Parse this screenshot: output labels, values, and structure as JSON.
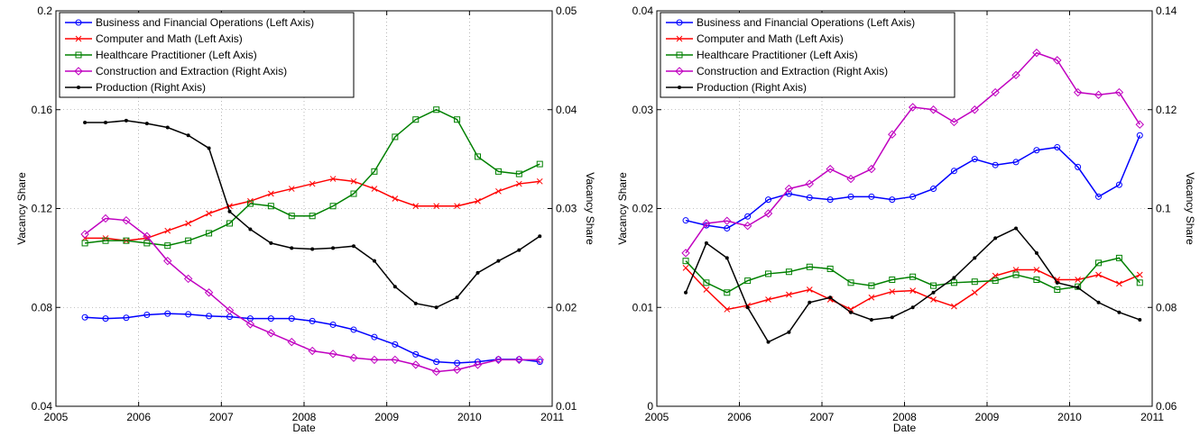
{
  "chart_data": [
    {
      "type": "line",
      "x_label": "Date",
      "y_label": "Vacancy Share",
      "y2_label": "Vacancy Share",
      "x": [
        2005.35,
        2005.6,
        2005.85,
        2006.1,
        2006.35,
        2006.6,
        2006.85,
        2007.1,
        2007.35,
        2007.6,
        2007.85,
        2008.1,
        2008.35,
        2008.6,
        2008.85,
        2009.1,
        2009.35,
        2009.6,
        2009.85,
        2010.1,
        2010.35,
        2010.6,
        2010.85
      ],
      "xlim": [
        2005,
        2011
      ],
      "xticks": [
        2005,
        2006,
        2007,
        2008,
        2009,
        2010,
        2011
      ],
      "ylim": [
        0.04,
        0.2
      ],
      "yticks": [
        0.04,
        0.08,
        0.12,
        0.16,
        0.2
      ],
      "y2lim": [
        0.01,
        0.05
      ],
      "y2ticks": [
        0.01,
        0.02,
        0.03,
        0.04,
        0.05
      ],
      "grid": true,
      "legend": "top-left",
      "series": [
        {
          "name": "Business and Financial Operations (Left Axis)",
          "color": "#0000ff",
          "marker": "circle",
          "values": [
            0.076,
            0.0755,
            0.0758,
            0.077,
            0.0775,
            0.0772,
            0.0765,
            0.0762,
            0.0755,
            0.0755,
            0.0755,
            0.0745,
            0.073,
            0.071,
            0.068,
            0.065,
            0.061,
            0.058,
            0.0575,
            0.058,
            0.059,
            0.059,
            0.058
          ]
        },
        {
          "name": "Computer and Math (Left Axis)",
          "color": "#ff0000",
          "marker": "x",
          "values": [
            0.108,
            0.108,
            0.107,
            0.108,
            0.111,
            0.114,
            0.118,
            0.121,
            0.123,
            0.126,
            0.128,
            0.13,
            0.132,
            0.131,
            0.128,
            0.124,
            0.121,
            0.121,
            0.121,
            0.123,
            0.127,
            0.13,
            0.131
          ]
        },
        {
          "name": "Healthcare Practitioner (Left Axis)",
          "color": "#008000",
          "marker": "square",
          "values": [
            0.106,
            0.107,
            0.107,
            0.106,
            0.105,
            0.107,
            0.11,
            0.114,
            0.122,
            0.121,
            0.117,
            0.117,
            0.121,
            0.126,
            0.135,
            0.149,
            0.156,
            0.16,
            0.156,
            0.141,
            0.135,
            0.134,
            0.138
          ]
        },
        {
          "name": "Construction and Extraction (Right Axis)",
          "color": "#c000c0",
          "marker": "diamond",
          "axis": "y2",
          "values": [
            0.0274,
            0.029,
            0.0288,
            0.0272,
            0.0247,
            0.0229,
            0.0215,
            0.0197,
            0.0183,
            0.0174,
            0.0165,
            0.0156,
            0.0153,
            0.0149,
            0.0147,
            0.0147,
            0.0142,
            0.0135,
            0.0137,
            0.0142,
            0.0147,
            0.0147,
            0.0147
          ]
        },
        {
          "name": "Production (Right Axis)",
          "color": "#000000",
          "marker": "dot",
          "axis": "y2",
          "values": [
            0.0387,
            0.0387,
            0.0389,
            0.0386,
            0.0382,
            0.0374,
            0.0361,
            0.0297,
            0.0279,
            0.0265,
            0.026,
            0.0259,
            0.026,
            0.0262,
            0.0247,
            0.0221,
            0.0204,
            0.02,
            0.021,
            0.0235,
            0.0247,
            0.0258,
            0.0272
          ]
        }
      ]
    },
    {
      "type": "line",
      "x_label": "Date",
      "y_label": "Vacancy Share",
      "y2_label": "Vacancy Share",
      "x": [
        2005.35,
        2005.6,
        2005.85,
        2006.1,
        2006.35,
        2006.6,
        2006.85,
        2007.1,
        2007.35,
        2007.6,
        2007.85,
        2008.1,
        2008.35,
        2008.6,
        2008.85,
        2009.1,
        2009.35,
        2009.6,
        2009.85,
        2010.1,
        2010.35,
        2010.6,
        2010.85
      ],
      "xlim": [
        2005,
        2011
      ],
      "xticks": [
        2005,
        2006,
        2007,
        2008,
        2009,
        2010,
        2011
      ],
      "ylim": [
        0,
        0.04
      ],
      "yticks": [
        0,
        0.01,
        0.02,
        0.03,
        0.04
      ],
      "y2lim": [
        0.06,
        0.14
      ],
      "y2ticks": [
        0.06,
        0.08,
        0.1,
        0.12,
        0.14
      ],
      "grid": true,
      "legend": "top-left",
      "series": [
        {
          "name": "Business and Financial Operations (Left Axis)",
          "color": "#0000ff",
          "marker": "circle",
          "values": [
            0.0188,
            0.0183,
            0.018,
            0.0192,
            0.0209,
            0.0215,
            0.0211,
            0.0209,
            0.0212,
            0.0212,
            0.0209,
            0.0212,
            0.022,
            0.0238,
            0.025,
            0.0244,
            0.0247,
            0.0259,
            0.0262,
            0.0242,
            0.0212,
            0.0224,
            0.0274
          ]
        },
        {
          "name": "Computer and Math (Left Axis)",
          "color": "#ff0000",
          "marker": "x",
          "values": [
            0.014,
            0.0118,
            0.0098,
            0.0102,
            0.0108,
            0.0113,
            0.0118,
            0.0108,
            0.0098,
            0.011,
            0.0116,
            0.0117,
            0.0108,
            0.0101,
            0.0115,
            0.0132,
            0.0138,
            0.0138,
            0.0128,
            0.0128,
            0.0133,
            0.0124,
            0.0133
          ]
        },
        {
          "name": "Healthcare Practitioner (Left Axis)",
          "color": "#008000",
          "marker": "square",
          "values": [
            0.0147,
            0.0125,
            0.0115,
            0.0127,
            0.0134,
            0.0136,
            0.0141,
            0.0139,
            0.0125,
            0.0122,
            0.0128,
            0.0131,
            0.0122,
            0.0125,
            0.0126,
            0.0127,
            0.0133,
            0.0128,
            0.0118,
            0.0121,
            0.0145,
            0.015,
            0.0125
          ]
        },
        {
          "name": "Construction and Extraction (Right Axis)",
          "color": "#c000c0",
          "marker": "diamond",
          "axis": "y2",
          "values": [
            0.091,
            0.097,
            0.0975,
            0.0965,
            0.099,
            0.104,
            0.105,
            0.108,
            0.106,
            0.108,
            0.115,
            0.1205,
            0.12,
            0.1175,
            0.12,
            0.1235,
            0.127,
            0.1315,
            0.13,
            0.1235,
            0.123,
            0.1235,
            0.117
          ]
        },
        {
          "name": "Production (Right Axis)",
          "color": "#000000",
          "marker": "dot",
          "axis": "y2",
          "values": [
            0.083,
            0.093,
            0.09,
            0.08,
            0.073,
            0.075,
            0.081,
            0.082,
            0.079,
            0.0775,
            0.078,
            0.08,
            0.083,
            0.086,
            0.09,
            0.094,
            0.096,
            0.091,
            0.085,
            0.084,
            0.081,
            0.079,
            0.0775
          ]
        }
      ]
    }
  ]
}
